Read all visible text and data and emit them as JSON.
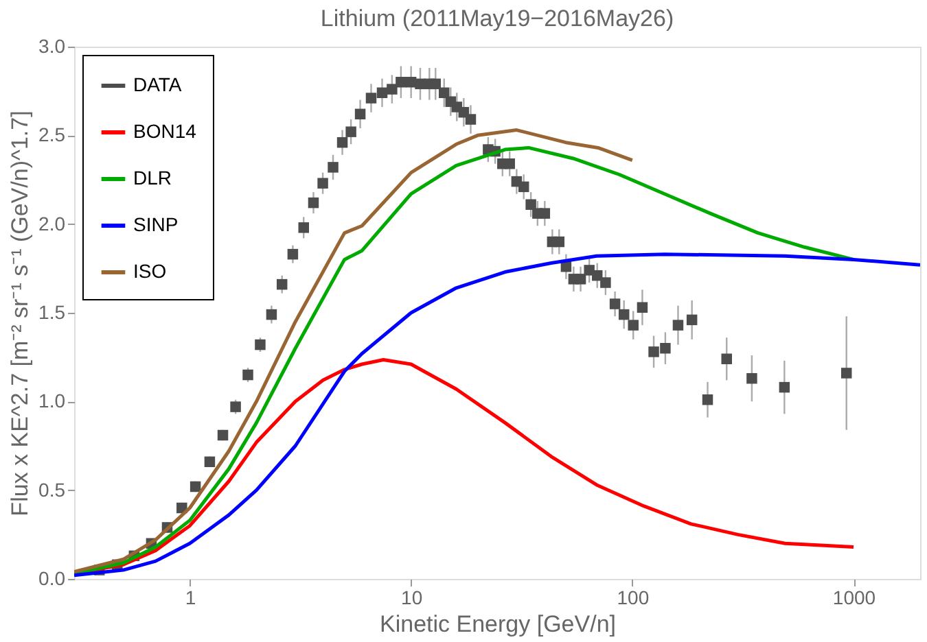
{
  "chart_data": {
    "type": "line",
    "title": "Lithium   (2011May19−2016May26)",
    "xlabel": "Kinetic Energy [GeV/n]",
    "ylabel": "Flux x KE^2.7 [m⁻² sr⁻¹ s⁻¹ (GeV/n)^1.7]",
    "log": "x",
    "xlim": [
      0.3,
      2000
    ],
    "xticks": [
      1,
      10,
      100,
      1000
    ],
    "ylim": [
      0,
      3
    ],
    "yticks": [
      {
        "value": 0,
        "label": "0.0"
      },
      {
        "value": 0.5,
        "label": "0.5"
      },
      {
        "value": 1,
        "label": "1.0"
      },
      {
        "value": 1.5,
        "label": "1.5"
      },
      {
        "value": 2,
        "label": "2.0"
      },
      {
        "value": 2.5,
        "label": "2.5"
      },
      {
        "value": 3,
        "label": "3.0"
      }
    ],
    "grid": false,
    "legend": "top left",
    "series": [
      {
        "name": "DATA",
        "type": "scatter",
        "marker": "square",
        "color": "#4d4d4d",
        "x": [
          0.39,
          0.47,
          0.56,
          0.67,
          0.79,
          0.92,
          1.06,
          1.23,
          1.41,
          1.61,
          1.83,
          2.08,
          2.34,
          2.61,
          2.92,
          3.27,
          3.62,
          3.99,
          4.44,
          4.89,
          5.35,
          5.89,
          6.6,
          7.4,
          8.2,
          9.0,
          10,
          11.0,
          12.1,
          12.9,
          14.1,
          15.1,
          16.1,
          17.3,
          18.6,
          22.3,
          24.0,
          25.9,
          27.9,
          30.0,
          32.3,
          34.8,
          37.3,
          40.2,
          43.5,
          46.7,
          50.2,
          54.3,
          58.4,
          63.9,
          69.4,
          75.7,
          83.5,
          91.7,
          101,
          111,
          125,
          141,
          161,
          186,
          219,
          267,
          347,
          487,
          929
        ],
        "values": [
          0.05,
          0.08,
          0.13,
          0.2,
          0.29,
          0.4,
          0.52,
          0.66,
          0.81,
          0.97,
          1.15,
          1.32,
          1.49,
          1.66,
          1.83,
          1.98,
          2.12,
          2.23,
          2.32,
          2.46,
          2.52,
          2.62,
          2.71,
          2.74,
          2.76,
          2.8,
          2.8,
          2.79,
          2.79,
          2.79,
          2.74,
          2.69,
          2.66,
          2.63,
          2.59,
          2.42,
          2.41,
          2.34,
          2.34,
          2.24,
          2.21,
          2.11,
          2.06,
          2.06,
          1.9,
          1.9,
          1.76,
          1.69,
          1.69,
          1.74,
          1.71,
          1.67,
          1.55,
          1.49,
          1.43,
          1.53,
          1.28,
          1.3,
          1.43,
          1.46,
          1.01,
          1.24,
          1.13,
          1.08,
          1.16
        ],
        "errors": [
          0.02,
          0.02,
          0.02,
          0.02,
          0.03,
          0.03,
          0.03,
          0.03,
          0.03,
          0.04,
          0.04,
          0.04,
          0.05,
          0.05,
          0.05,
          0.06,
          0.06,
          0.06,
          0.07,
          0.07,
          0.07,
          0.08,
          0.08,
          0.08,
          0.08,
          0.09,
          0.09,
          0.09,
          0.09,
          0.09,
          0.08,
          0.08,
          0.08,
          0.08,
          0.08,
          0.07,
          0.07,
          0.07,
          0.07,
          0.07,
          0.07,
          0.07,
          0.07,
          0.07,
          0.07,
          0.07,
          0.07,
          0.07,
          0.07,
          0.07,
          0.07,
          0.07,
          0.07,
          0.08,
          0.08,
          0.1,
          0.09,
          0.09,
          0.11,
          0.11,
          0.1,
          0.12,
          0.13,
          0.15,
          0.32
        ]
      },
      {
        "name": "BON14",
        "color": "#ff0000",
        "x": [
          0.3,
          0.5,
          0.7,
          1,
          1.5,
          2,
          3,
          4,
          5,
          6,
          7.5,
          10,
          16,
          26.6,
          43,
          69,
          113,
          184,
          300,
          490,
          1000
        ],
        "values": [
          0.03,
          0.08,
          0.16,
          0.3,
          0.55,
          0.77,
          1.0,
          1.12,
          1.18,
          1.21,
          1.235,
          1.21,
          1.07,
          0.88,
          0.69,
          0.53,
          0.41,
          0.31,
          0.25,
          0.2,
          0.18
        ]
      },
      {
        "name": "DLR",
        "color": "#00aa00",
        "x": [
          0.3,
          0.5,
          0.7,
          1,
          1.5,
          2,
          3,
          5,
          6,
          10,
          16,
          26.6,
          34,
          54,
          87,
          140,
          225,
          370,
          600,
          1000
        ],
        "values": [
          0.03,
          0.09,
          0.18,
          0.33,
          0.62,
          0.88,
          1.3,
          1.8,
          1.85,
          2.17,
          2.33,
          2.42,
          2.43,
          2.37,
          2.28,
          2.17,
          2.06,
          1.95,
          1.87,
          1.8
        ]
      },
      {
        "name": "SINP",
        "color": "#0000ff",
        "x": [
          0.3,
          0.5,
          0.7,
          1,
          1.5,
          2,
          3,
          5,
          6,
          10,
          16,
          26.6,
          43,
          69,
          140,
          490,
          1000,
          2000
        ],
        "values": [
          0.02,
          0.05,
          0.1,
          0.2,
          0.36,
          0.5,
          0.75,
          1.17,
          1.27,
          1.5,
          1.64,
          1.73,
          1.78,
          1.82,
          1.83,
          1.82,
          1.8,
          1.77
        ]
      },
      {
        "name": "ISO",
        "color": "#996633",
        "x": [
          0.3,
          0.5,
          0.7,
          1,
          1.5,
          2,
          3,
          5,
          6,
          10,
          16,
          20,
          30,
          50,
          70,
          100
        ],
        "values": [
          0.04,
          0.11,
          0.22,
          0.4,
          0.72,
          1.0,
          1.45,
          1.95,
          1.99,
          2.29,
          2.45,
          2.5,
          2.53,
          2.46,
          2.43,
          2.36
        ]
      }
    ]
  }
}
